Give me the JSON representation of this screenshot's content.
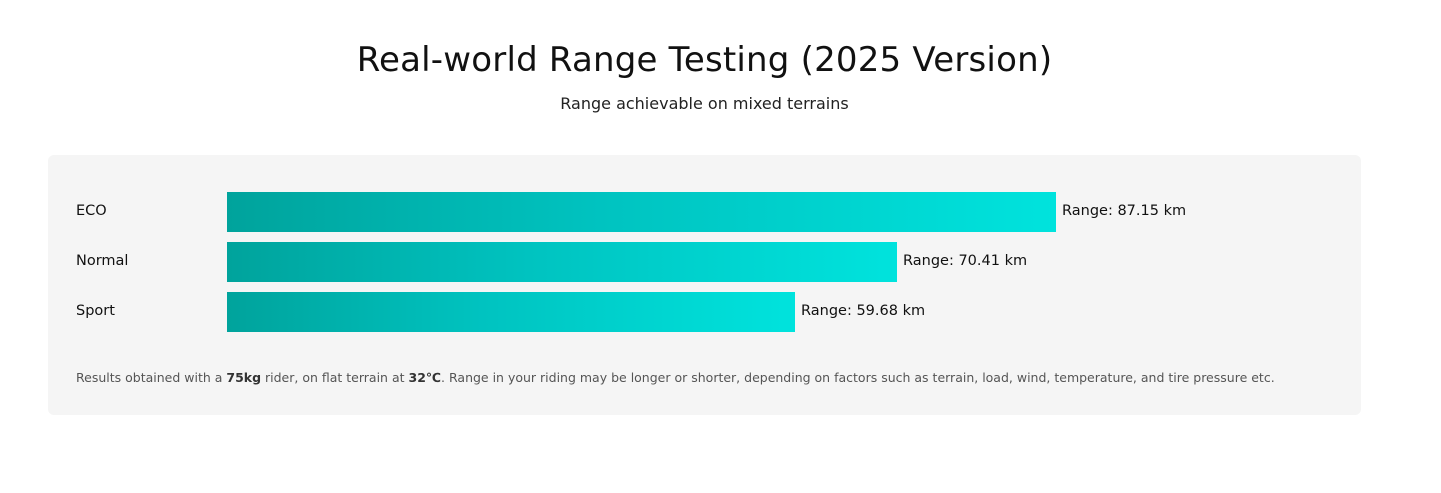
{
  "header": {
    "title": "Real-world Range Testing (2025 Version)",
    "subtitle": "Range achievable on mixed terrains"
  },
  "chart_data": {
    "type": "bar",
    "orientation": "horizontal",
    "title": "Real-world Range Testing (2025 Version)",
    "subtitle": "Range achievable on mixed terrains",
    "unit": "km",
    "value_prefix": "Range: ",
    "categories": [
      "ECO",
      "Normal",
      "Sport"
    ],
    "values": [
      87.15,
      70.41,
      59.68
    ],
    "value_labels": [
      "Range: 87.15 km",
      "Range: 70.41 km",
      "Range: 59.68 km"
    ],
    "xlim": [
      0,
      87.15
    ],
    "grid": false,
    "legend": "none",
    "bar_gradient": [
      "#00a39c",
      "#00e3dd"
    ]
  },
  "footnote": {
    "part1": "Results obtained with a ",
    "rider_weight": "75kg",
    "part2": " rider, on flat terrain at ",
    "temperature": "32℃",
    "part3": ". Range in your riding may be longer or shorter, depending on factors such as terrain, load, wind, temperature, and tire pressure etc."
  }
}
